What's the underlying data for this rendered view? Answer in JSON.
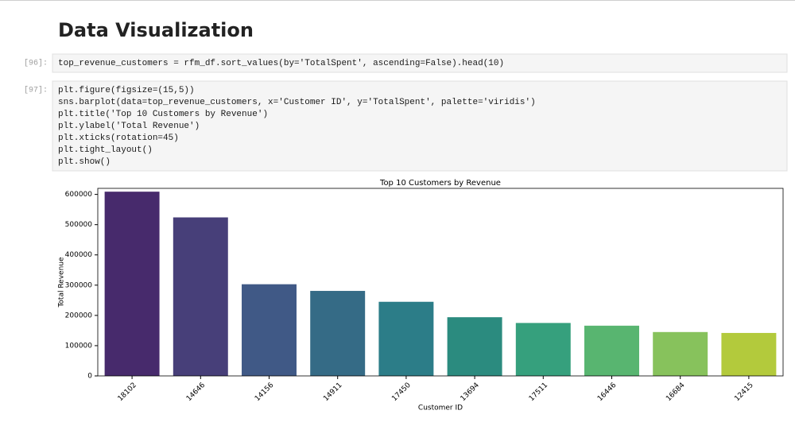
{
  "header": {
    "title": "Data Visualization"
  },
  "cells": [
    {
      "prompt": "[96]:",
      "code": [
        "top_revenue_customers = rfm_df.sort_values(by='TotalSpent', ascending=False).head(10)"
      ]
    },
    {
      "prompt": "[97]:",
      "code": [
        "plt.figure(figsize=(15,5))",
        "sns.barplot(data=top_revenue_customers, x='Customer ID', y='TotalSpent', palette='viridis')",
        "plt.title('Top 10 Customers by Revenue')",
        "plt.ylabel('Total Revenue')",
        "plt.xticks(rotation=45)",
        "plt.tight_layout()",
        "plt.show()"
      ]
    }
  ],
  "chart_data": {
    "type": "bar",
    "title": "Top 10 Customers by Revenue",
    "x_label": "Customer ID",
    "y_label": "Total Revenue",
    "categories": [
      "18102",
      "14646",
      "14156",
      "14911",
      "17450",
      "13694",
      "17511",
      "16446",
      "16684",
      "12415"
    ],
    "values": [
      609000,
      524000,
      303000,
      281000,
      245000,
      194000,
      175000,
      166000,
      145000,
      142000
    ],
    "colors": [
      "#472a6c",
      "#473f79",
      "#405986",
      "#356b86",
      "#2c7d88",
      "#2b8b7f",
      "#36a07d",
      "#58b570",
      "#87c25c",
      "#b3ca3c"
    ],
    "ylim": [
      0,
      620000
    ],
    "yticks": [
      0,
      100000,
      200000,
      300000,
      400000,
      500000,
      600000
    ]
  }
}
